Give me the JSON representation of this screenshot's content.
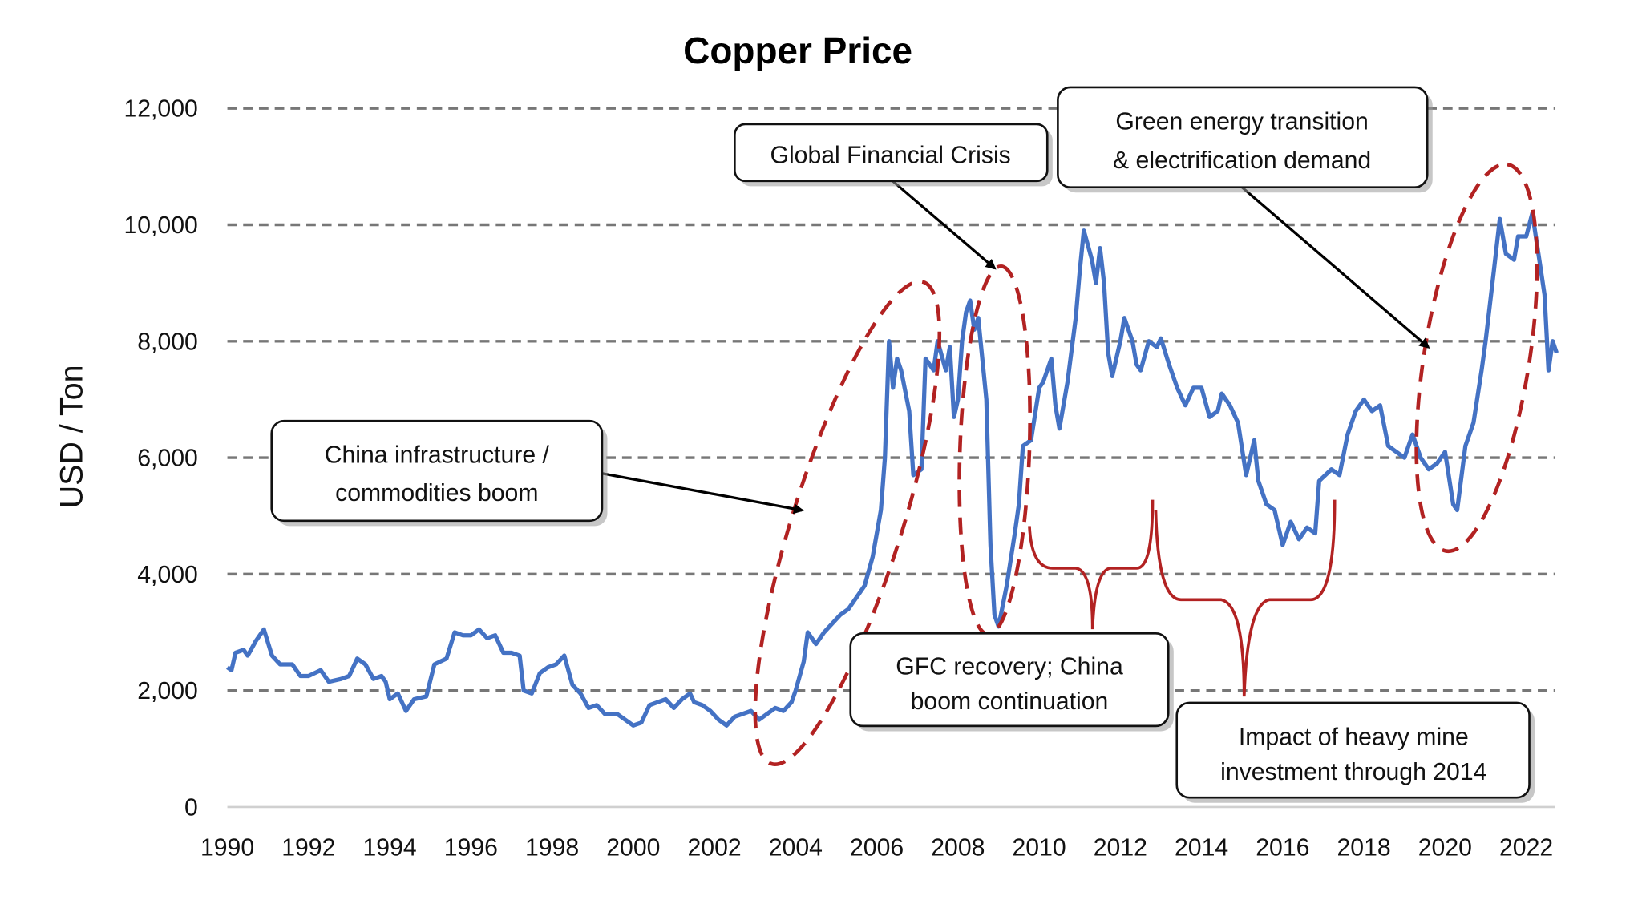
{
  "chart_data": {
    "type": "line",
    "title": "Copper Price",
    "xlabel": "",
    "ylabel": "USD / Ton",
    "xlim": [
      1990,
      2022.8
    ],
    "ylim": [
      0,
      12000
    ],
    "x_ticks": [
      "1990",
      "1992",
      "1994",
      "1996",
      "1998",
      "2000",
      "2002",
      "2004",
      "2006",
      "2008",
      "2010",
      "2012",
      "2014",
      "2016",
      "2018",
      "2020",
      "2022"
    ],
    "y_ticks": [
      "0",
      "2,000",
      "4,000",
      "6,000",
      "8,000",
      "10,000",
      "12,000"
    ],
    "grid": "horizontal dashed",
    "legend": "none",
    "line_color": "#4472C4",
    "annotation_color": "#B22222",
    "series": [
      {
        "x": [
          1990.0,
          1990.1,
          1990.2,
          1990.4,
          1990.5,
          1990.7,
          1990.9,
          1991.1,
          1991.3,
          1991.6,
          1991.8,
          1992.0,
          1992.3,
          1992.5,
          1992.8,
          1993.0,
          1993.2,
          1993.4,
          1993.6,
          1993.8,
          1993.9,
          1994.0,
          1994.2,
          1994.4,
          1994.6,
          1994.9,
          1995.1,
          1995.4,
          1995.6,
          1995.8,
          1996.0,
          1996.2,
          1996.4,
          1996.6,
          1996.8,
          1997.0,
          1997.2,
          1997.3,
          1997.5,
          1997.7,
          1997.9,
          1998.1,
          1998.3,
          1998.5,
          1998.7,
          1998.9,
          1999.1,
          1999.3,
          1999.6,
          1999.8,
          2000.0,
          2000.2,
          2000.4,
          2000.6,
          2000.8,
          2001.0,
          2001.2,
          2001.4,
          2001.5,
          2001.7,
          2001.9,
          2002.1,
          2002.3,
          2002.5,
          2002.7,
          2002.9,
          2003.1,
          2003.3,
          2003.5,
          2003.7,
          2003.9,
          2004.0,
          2004.2,
          2004.3,
          2004.5,
          2004.7,
          2004.9,
          2005.1,
          2005.3,
          2005.5,
          2005.7,
          2005.9,
          2006.0,
          2006.1,
          2006.2,
          2006.3,
          2006.4,
          2006.5,
          2006.6,
          2006.8,
          2006.9,
          2007.1,
          2007.2,
          2007.4,
          2007.5,
          2007.7,
          2007.8,
          2007.9,
          2008.0,
          2008.1,
          2008.2,
          2008.3,
          2008.4,
          2008.5,
          2008.7,
          2008.8,
          2008.9,
          2009.0,
          2009.2,
          2009.4,
          2009.5,
          2009.6,
          2009.8,
          2010.0,
          2010.1,
          2010.3,
          2010.4,
          2010.5,
          2010.7,
          2010.9,
          2011.0,
          2011.1,
          2011.3,
          2011.4,
          2011.5,
          2011.6,
          2011.7,
          2011.8,
          2012.0,
          2012.1,
          2012.3,
          2012.4,
          2012.5,
          2012.7,
          2012.9,
          2013.0,
          2013.2,
          2013.4,
          2013.6,
          2013.8,
          2014.0,
          2014.2,
          2014.4,
          2014.5,
          2014.7,
          2014.9,
          2015.1,
          2015.3,
          2015.4,
          2015.6,
          2015.8,
          2016.0,
          2016.2,
          2016.4,
          2016.6,
          2016.8,
          2016.9,
          2017.2,
          2017.4,
          2017.6,
          2017.8,
          2018.0,
          2018.2,
          2018.4,
          2018.6,
          2018.8,
          2019.0,
          2019.2,
          2019.4,
          2019.6,
          2019.8,
          2020.0,
          2020.2,
          2020.3,
          2020.5,
          2020.7,
          2020.9,
          2021.0,
          2021.2,
          2021.35,
          2021.5,
          2021.7,
          2021.8,
          2022.0,
          2022.15,
          2022.3,
          2022.45,
          2022.55,
          2022.65,
          2022.75
        ],
        "values": [
          2400,
          2350,
          2650,
          2700,
          2600,
          2850,
          3050,
          2600,
          2450,
          2450,
          2250,
          2250,
          2350,
          2150,
          2200,
          2250,
          2550,
          2450,
          2200,
          2250,
          2150,
          1850,
          1950,
          1650,
          1850,
          1900,
          2450,
          2550,
          3000,
          2950,
          2950,
          3050,
          2900,
          2950,
          2650,
          2650,
          2600,
          2000,
          1950,
          2300,
          2400,
          2450,
          2600,
          2100,
          1950,
          1700,
          1750,
          1600,
          1600,
          1500,
          1400,
          1450,
          1750,
          1800,
          1850,
          1700,
          1850,
          1950,
          1800,
          1750,
          1650,
          1500,
          1400,
          1550,
          1600,
          1650,
          1500,
          1600,
          1700,
          1650,
          1800,
          2000,
          2500,
          3000,
          2800,
          3000,
          3150,
          3300,
          3400,
          3600,
          3800,
          4300,
          4700,
          5100,
          6000,
          8000,
          7200,
          7700,
          7500,
          6800,
          5700,
          5800,
          7700,
          7500,
          8000,
          7500,
          7900,
          6700,
          7000,
          8000,
          8500,
          8700,
          8200,
          8400,
          7000,
          4500,
          3300,
          3100,
          3800,
          4700,
          5200,
          6200,
          6300,
          7200,
          7300,
          7700,
          6900,
          6500,
          7300,
          8400,
          9200,
          9900,
          9400,
          9000,
          9600,
          9000,
          7800,
          7400,
          8000,
          8400,
          8000,
          7600,
          7500,
          8000,
          7900,
          8050,
          7600,
          7200,
          6900,
          7200,
          7200,
          6700,
          6800,
          7100,
          6900,
          6600,
          5700,
          6300,
          5600,
          5200,
          5100,
          4500,
          4900,
          4600,
          4800,
          4700,
          5600,
          5800,
          5700,
          6400,
          6800,
          7000,
          6800,
          6900,
          6200,
          6100,
          6000,
          6400,
          6000,
          5800,
          5900,
          6100,
          5200,
          5100,
          6200,
          6600,
          7500,
          8000,
          9200,
          10100,
          9500,
          9400,
          9800,
          9800,
          10200,
          9500,
          8800,
          7500,
          8000,
          7800
        ]
      }
    ],
    "annotations": {
      "china_boom": [
        "China infrastructure /",
        "commodities boom"
      ],
      "gfc": [
        "Global Financial Crisis"
      ],
      "green": [
        "Green energy transition",
        "& electrification demand"
      ],
      "gfc_recovery": [
        "GFC recovery; China",
        "boom continuation"
      ],
      "mine_investment": [
        "Impact of heavy mine",
        "investment through 2014"
      ]
    }
  }
}
